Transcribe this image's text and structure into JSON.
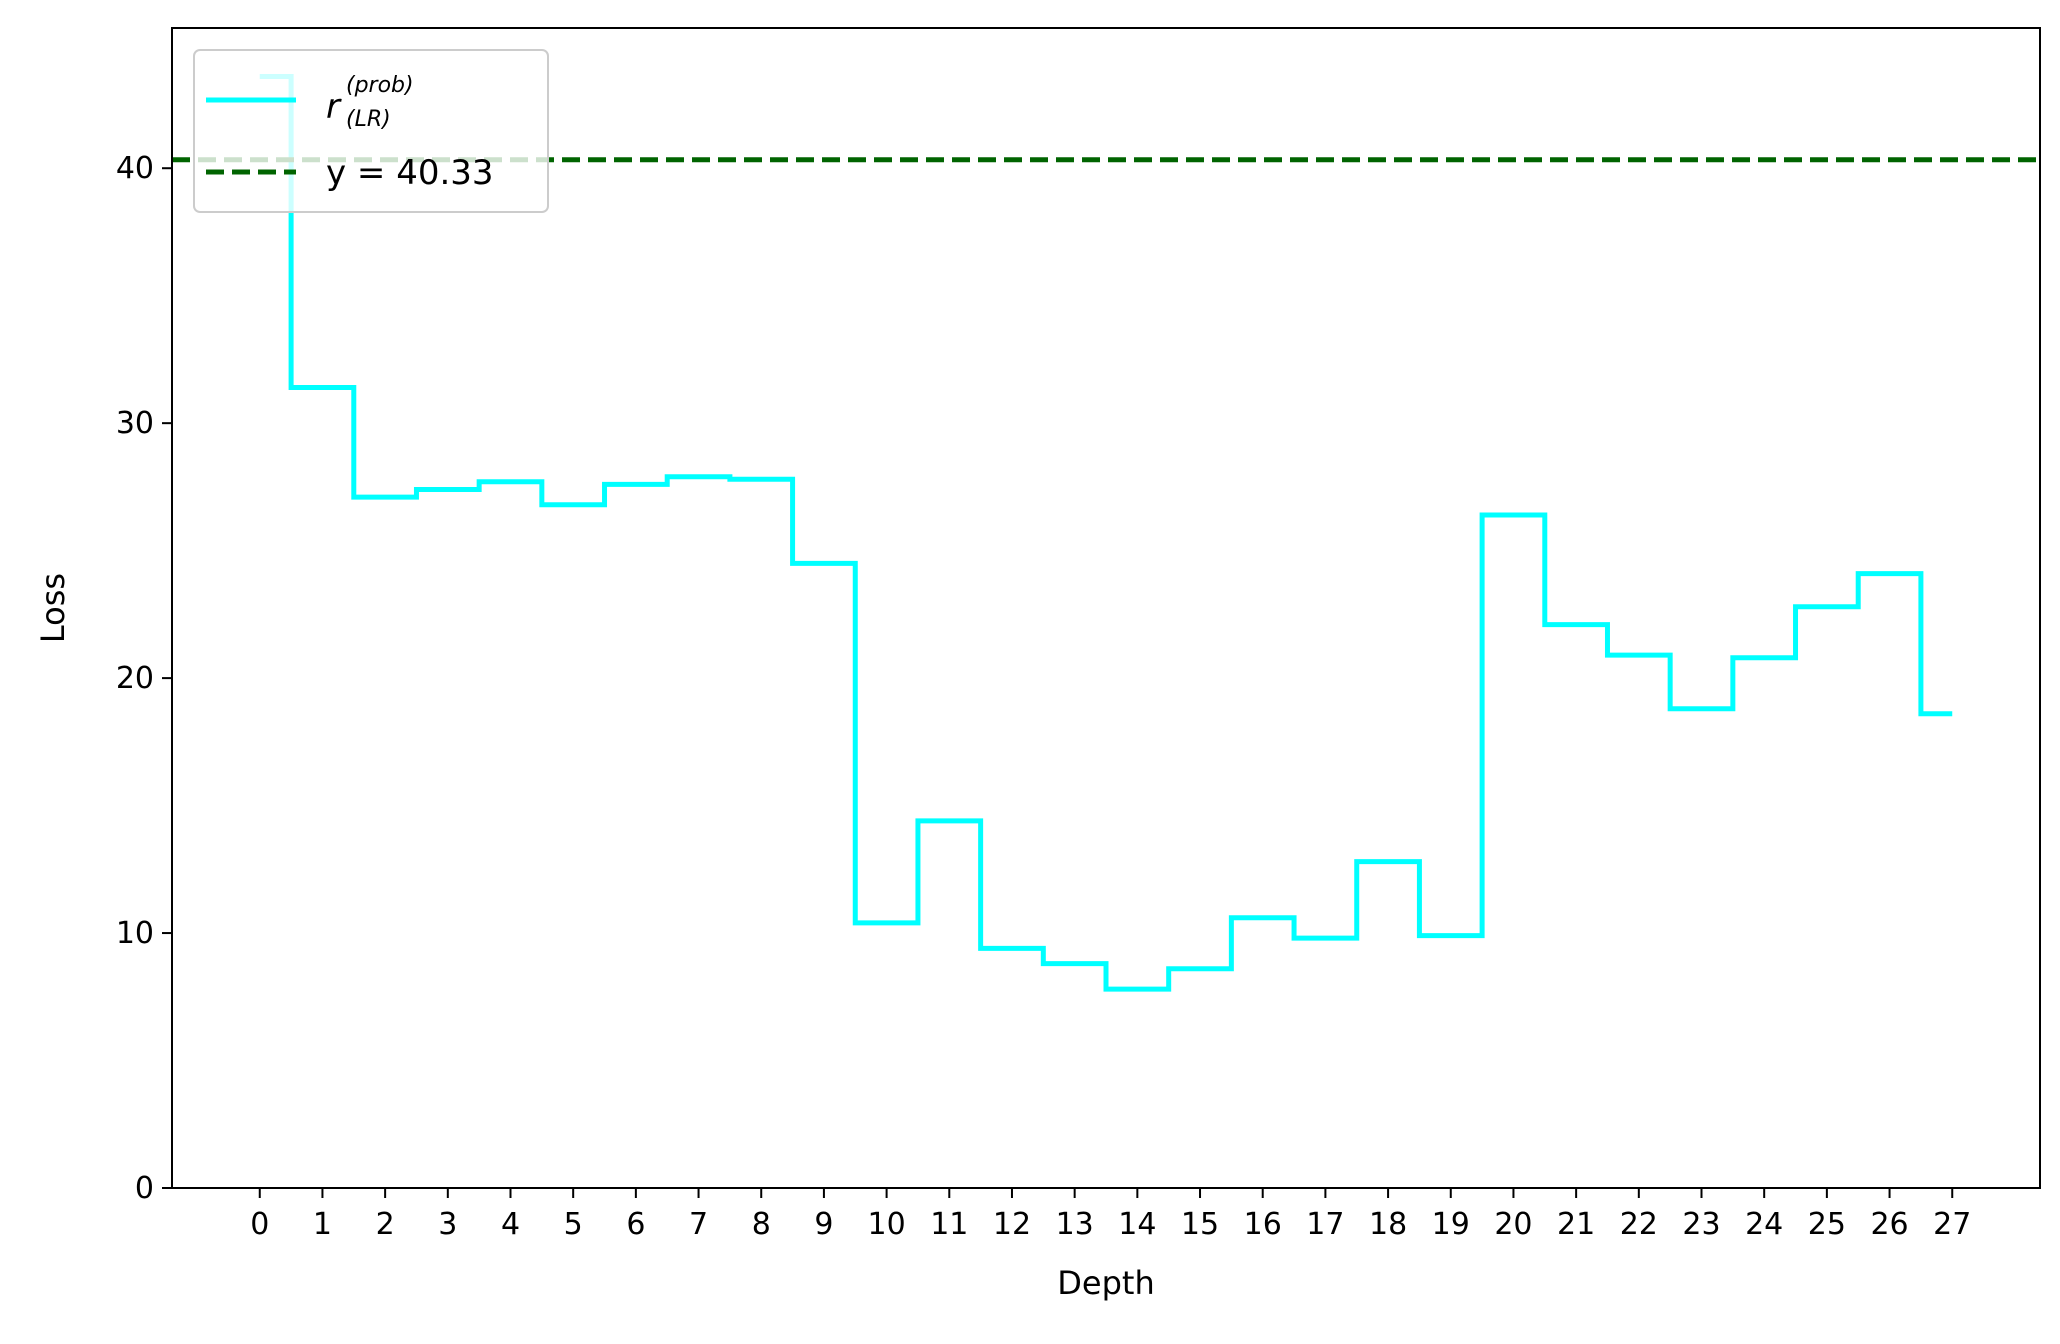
{
  "chart_data": {
    "type": "line",
    "step": "mid",
    "xlabel": "Depth",
    "ylabel": "Loss",
    "ylim": [
      0,
      45.5
    ],
    "xlim": [
      -1.4,
      28.4
    ],
    "xticks": [
      0,
      1,
      2,
      3,
      4,
      5,
      6,
      7,
      8,
      9,
      10,
      11,
      12,
      13,
      14,
      15,
      16,
      17,
      18,
      19,
      20,
      21,
      22,
      23,
      24,
      25,
      26,
      27
    ],
    "yticks": [
      0,
      10,
      20,
      30,
      40
    ],
    "grid": false,
    "legend_position": "top-left",
    "series": [
      {
        "name_main": "r",
        "name_sup": "(prob)",
        "name_sub": "(LR)",
        "color": "#00ffff",
        "x": [
          0,
          1,
          2,
          3,
          4,
          5,
          6,
          7,
          8,
          9,
          10,
          11,
          12,
          13,
          14,
          15,
          16,
          17,
          18,
          19,
          20,
          21,
          22,
          23,
          24,
          25,
          26,
          27
        ],
        "values": [
          43.6,
          31.4,
          27.1,
          27.4,
          27.7,
          26.8,
          27.6,
          27.9,
          27.8,
          24.5,
          10.4,
          14.4,
          9.4,
          8.8,
          7.8,
          8.6,
          10.6,
          9.8,
          12.8,
          9.9,
          26.4,
          22.1,
          20.9,
          18.8,
          20.8,
          22.8,
          24.1,
          18.6
        ]
      }
    ],
    "reference_line": {
      "label": "y = 40.33",
      "value": 40.33,
      "color": "#006400",
      "style": "dashed"
    }
  }
}
